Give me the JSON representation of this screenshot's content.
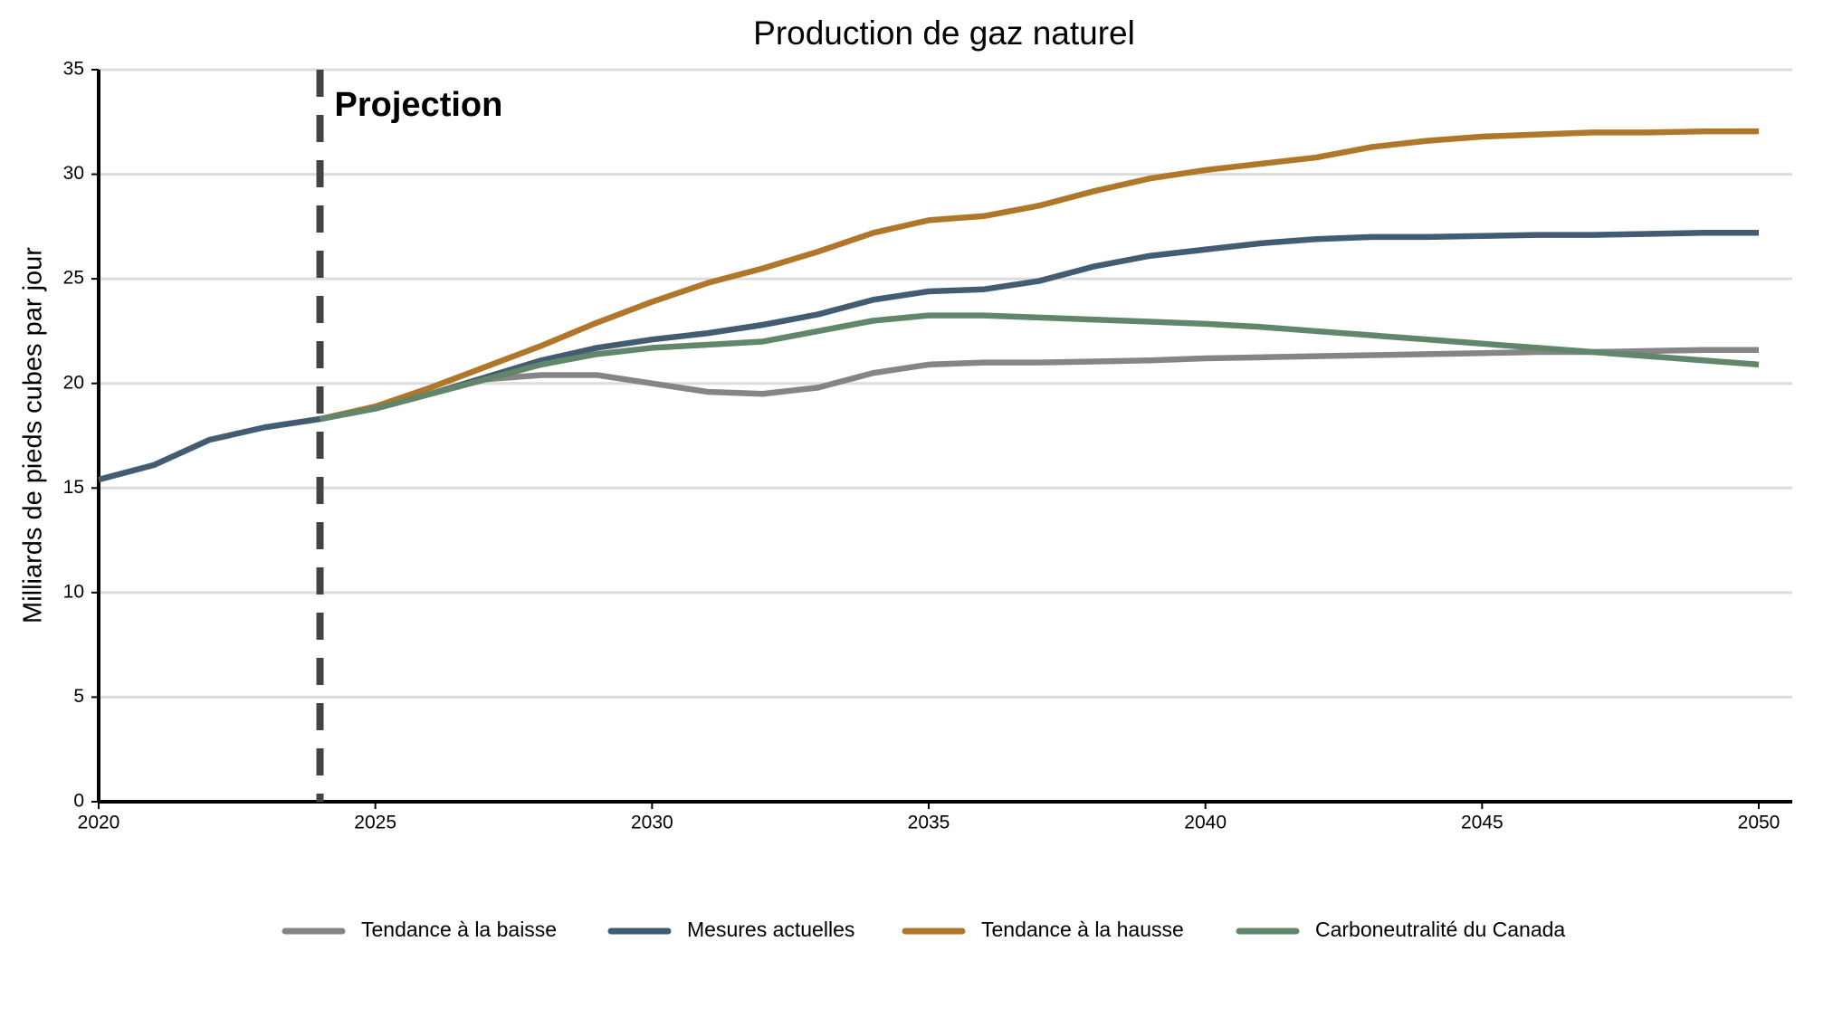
{
  "chart_data": {
    "type": "line",
    "title": "Production de gaz naturel",
    "ylabel": "Milliards de pieds cubes par jour",
    "x": [
      2020,
      2021,
      2022,
      2023,
      2024,
      2025,
      2026,
      2027,
      2028,
      2029,
      2030,
      2031,
      2032,
      2033,
      2034,
      2035,
      2036,
      2037,
      2038,
      2039,
      2040,
      2041,
      2042,
      2043,
      2044,
      2045,
      2046,
      2047,
      2048,
      2049,
      2050
    ],
    "series": [
      {
        "name": "Tendance à la baisse",
        "color": "#858585",
        "values": [
          null,
          null,
          null,
          null,
          18.3,
          18.8,
          19.5,
          20.2,
          20.4,
          20.4,
          20.0,
          19.6,
          19.5,
          19.8,
          20.5,
          20.9,
          21.0,
          21.0,
          21.05,
          21.1,
          21.2,
          21.25,
          21.3,
          21.35,
          21.4,
          21.45,
          21.5,
          21.5,
          21.55,
          21.6,
          21.6
        ]
      },
      {
        "name": "Mesures actuelles",
        "color": "#435c71",
        "values": [
          15.4,
          16.1,
          17.3,
          17.9,
          18.3,
          18.8,
          19.5,
          20.3,
          21.1,
          21.7,
          22.1,
          22.4,
          22.8,
          23.3,
          24.0,
          24.4,
          24.5,
          24.9,
          25.6,
          26.1,
          26.4,
          26.7,
          26.9,
          27.0,
          27.0,
          27.05,
          27.1,
          27.1,
          27.15,
          27.2,
          27.2
        ]
      },
      {
        "name": "Tendance à la hausse",
        "color": "#b0772b",
        "values": [
          null,
          null,
          null,
          null,
          18.3,
          18.9,
          19.8,
          20.8,
          21.8,
          22.9,
          23.9,
          24.8,
          25.5,
          26.3,
          27.2,
          27.8,
          28.0,
          28.5,
          29.2,
          29.8,
          30.2,
          30.5,
          30.8,
          31.3,
          31.6,
          31.8,
          31.9,
          32.0,
          32.0,
          32.05,
          32.05
        ]
      },
      {
        "name": "Carboneutralité du Canada",
        "color": "#62866a",
        "values": [
          null,
          null,
          null,
          null,
          18.3,
          18.8,
          19.5,
          20.2,
          20.9,
          21.4,
          21.7,
          21.85,
          22.0,
          22.5,
          23.0,
          23.25,
          23.25,
          23.15,
          23.05,
          22.95,
          22.85,
          22.7,
          22.5,
          22.3,
          22.1,
          21.9,
          21.7,
          21.5,
          21.3,
          21.1,
          20.9
        ]
      }
    ],
    "projection": {
      "x": 2024,
      "label": "Projection"
    },
    "xlim": [
      2020,
      2050
    ],
    "xticks": [
      2020,
      2025,
      2030,
      2035,
      2040,
      2045,
      2050
    ],
    "ylim": [
      0,
      35
    ],
    "yticks": [
      0,
      5,
      10,
      15,
      20,
      25,
      30,
      35
    ],
    "grid": true,
    "legend": "bottom"
  }
}
